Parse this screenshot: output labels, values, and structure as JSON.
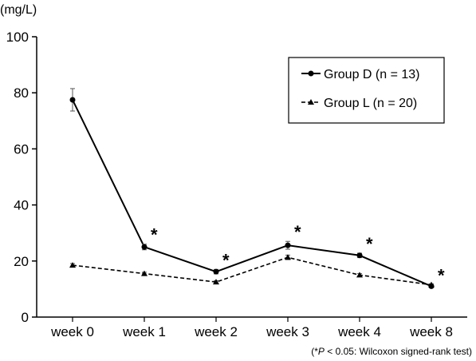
{
  "chart_data": {
    "type": "line",
    "ylabel": "(mg/L)",
    "categories": [
      "week 0",
      "week 1",
      "week 2",
      "week 3",
      "week 4",
      "week 8"
    ],
    "ylim": [
      0,
      100
    ],
    "yticks": [
      0,
      20,
      40,
      60,
      80,
      100
    ],
    "grid": false,
    "legend": "top-right",
    "series": [
      {
        "name": "Group D (n = 13)",
        "values": [
          77.5,
          25,
          16.2,
          25.6,
          22,
          11
        ],
        "errors": [
          4,
          1,
          0.8,
          1.4,
          0.8,
          0.5
        ],
        "marker": "circle",
        "line": "solid",
        "color": "#000000"
      },
      {
        "name": "Group L (n = 20)",
        "values": [
          18.5,
          15.5,
          12.5,
          21.3,
          15,
          11.5
        ],
        "errors": [
          0.6,
          0.5,
          0.5,
          0.8,
          0.5,
          0.4
        ],
        "marker": "triangle",
        "line": "dashed",
        "color": "#000000"
      }
    ],
    "significance": {
      "symbol": "*",
      "series": "Group D (n = 13)",
      "categories": [
        "week 1",
        "week 2",
        "week 3",
        "week 4",
        "week 8"
      ]
    },
    "footnote": {
      "prefix": "(*",
      "p_symbol": "P",
      "suffix": " < 0.05: Wilcoxon signed-rank test)"
    }
  }
}
